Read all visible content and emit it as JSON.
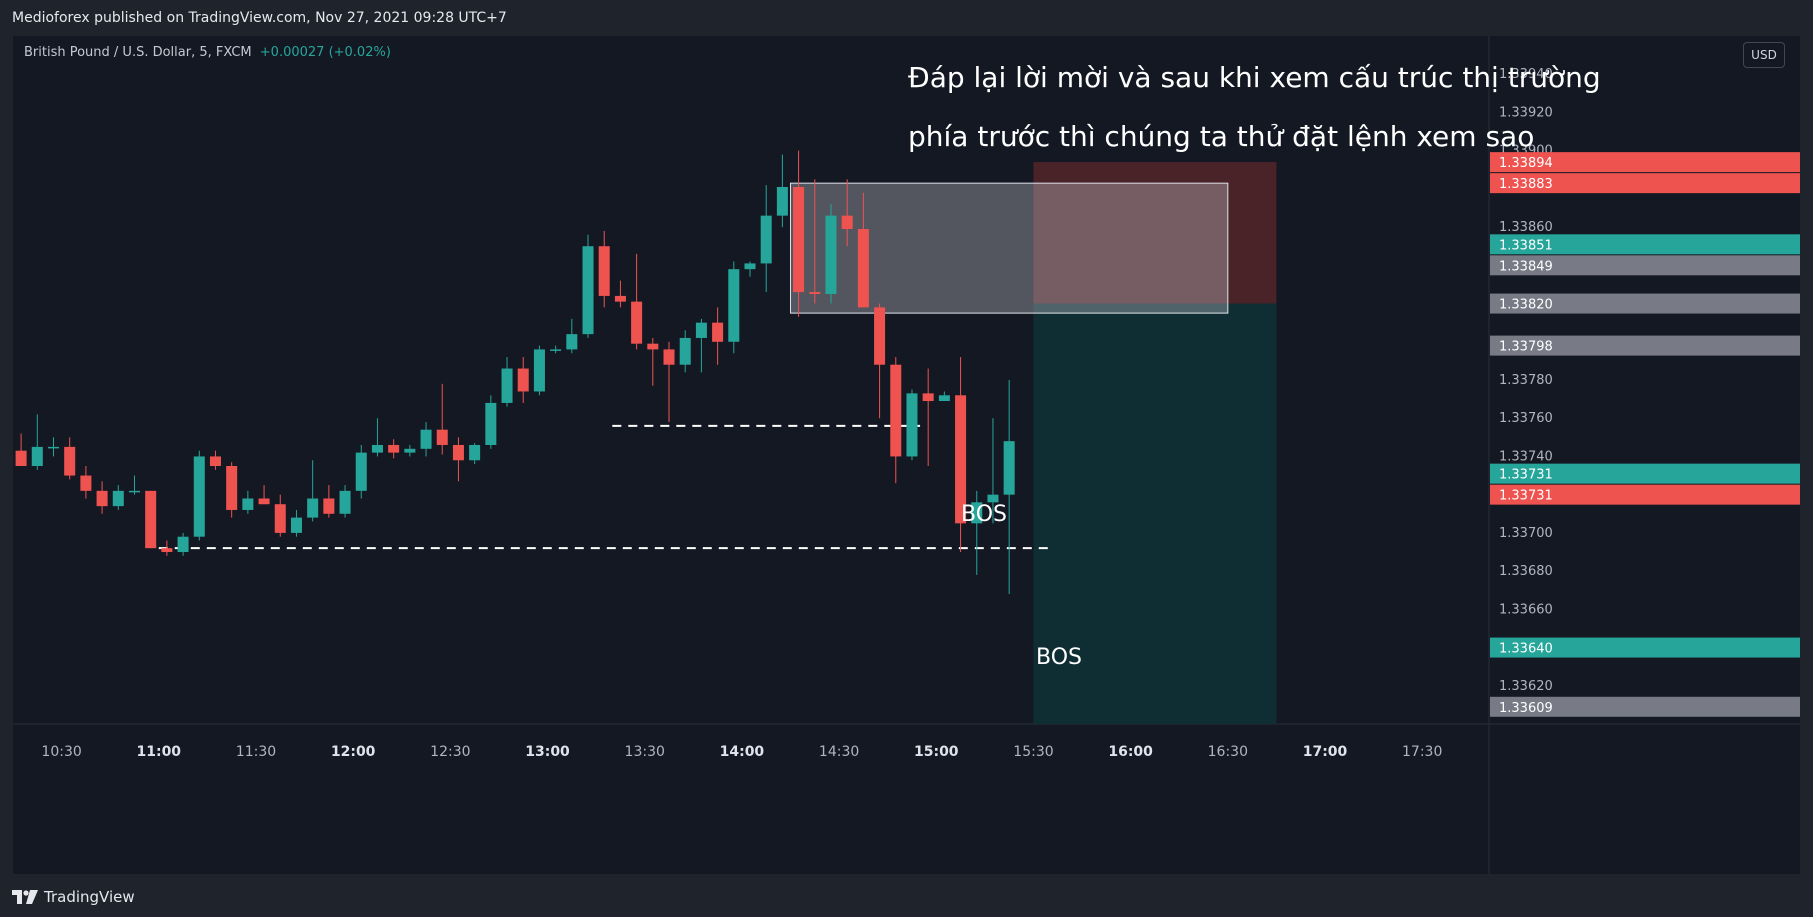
{
  "header": {
    "published": "Medioforex published on TradingView.com, Nov 27, 2021 09:28 UTC+7"
  },
  "symbol": {
    "name": "British Pound / U.S. Dollar, 5, FXCM",
    "change": "+0.00027 (+0.02%)"
  },
  "annotation": {
    "line1": "Đáp lại lời mời và sau khi xem cấu trúc thị trường",
    "line2": "phía trước thì chúng ta thử đặt lệnh xem sao"
  },
  "bos_labels": [
    "BOS",
    "BOS"
  ],
  "currency": "USD",
  "footer": {
    "brand": "TradingView"
  },
  "colors": {
    "up": "#26a69a",
    "down": "#ef5350",
    "stop_zone": "#4a2329",
    "target_zone": "#0f2e33",
    "grey_label": "#787b86"
  },
  "chart_data": {
    "type": "candlestick",
    "timeframe_minutes": 5,
    "ylim": [
      1.336,
      1.3396
    ],
    "xlim": [
      "10:15",
      "17:50"
    ],
    "x_ticks": [
      "10:30",
      "11:00",
      "11:30",
      "12:00",
      "12:30",
      "13:00",
      "13:30",
      "14:00",
      "14:30",
      "15:00",
      "15:30",
      "16:00",
      "16:30",
      "17:00",
      "17:30"
    ],
    "major_x_ticks": [
      "11:00",
      "12:00",
      "13:00",
      "14:00",
      "15:00",
      "16:00",
      "17:00"
    ],
    "y_ticks": [
      "1.33940",
      "1.33920",
      "1.33900",
      "1.33880",
      "1.33860",
      "1.33840",
      "1.33820",
      "1.33800",
      "1.33780",
      "1.33760",
      "1.33740",
      "1.33720",
      "1.33700",
      "1.33680",
      "1.33660",
      "1.33640",
      "1.33620"
    ],
    "candles": [
      {
        "t": "10:15",
        "o": 1.33743,
        "h": 1.33752,
        "l": 1.33735,
        "c": 1.33735
      },
      {
        "t": "10:20",
        "o": 1.33735,
        "h": 1.33762,
        "l": 1.33733,
        "c": 1.33745
      },
      {
        "t": "10:25",
        "o": 1.33745,
        "h": 1.3375,
        "l": 1.3374,
        "c": 1.33745
      },
      {
        "t": "10:30",
        "o": 1.33745,
        "h": 1.3375,
        "l": 1.33728,
        "c": 1.3373
      },
      {
        "t": "10:35",
        "o": 1.3373,
        "h": 1.33735,
        "l": 1.33718,
        "c": 1.33722
      },
      {
        "t": "10:40",
        "o": 1.33722,
        "h": 1.33727,
        "l": 1.3371,
        "c": 1.33714
      },
      {
        "t": "10:45",
        "o": 1.33714,
        "h": 1.33725,
        "l": 1.33712,
        "c": 1.33722
      },
      {
        "t": "10:50",
        "o": 1.33722,
        "h": 1.3373,
        "l": 1.3372,
        "c": 1.33722
      },
      {
        "t": "10:55",
        "o": 1.33722,
        "h": 1.33722,
        "l": 1.33692,
        "c": 1.33692
      },
      {
        "t": "11:00",
        "o": 1.33692,
        "h": 1.33696,
        "l": 1.33688,
        "c": 1.3369
      },
      {
        "t": "11:05",
        "o": 1.3369,
        "h": 1.337,
        "l": 1.33688,
        "c": 1.33698
      },
      {
        "t": "11:10",
        "o": 1.33698,
        "h": 1.33743,
        "l": 1.33696,
        "c": 1.3374
      },
      {
        "t": "11:15",
        "o": 1.3374,
        "h": 1.33743,
        "l": 1.33733,
        "c": 1.33735
      },
      {
        "t": "11:20",
        "o": 1.33735,
        "h": 1.33737,
        "l": 1.33708,
        "c": 1.33712
      },
      {
        "t": "11:25",
        "o": 1.33712,
        "h": 1.33722,
        "l": 1.3371,
        "c": 1.33718
      },
      {
        "t": "11:30",
        "o": 1.33718,
        "h": 1.33725,
        "l": 1.33715,
        "c": 1.33715
      },
      {
        "t": "11:35",
        "o": 1.33715,
        "h": 1.3372,
        "l": 1.33698,
        "c": 1.337
      },
      {
        "t": "11:40",
        "o": 1.337,
        "h": 1.33712,
        "l": 1.33698,
        "c": 1.33708
      },
      {
        "t": "11:45",
        "o": 1.33708,
        "h": 1.33738,
        "l": 1.33706,
        "c": 1.33718
      },
      {
        "t": "11:50",
        "o": 1.33718,
        "h": 1.33725,
        "l": 1.33708,
        "c": 1.3371
      },
      {
        "t": "11:55",
        "o": 1.3371,
        "h": 1.33725,
        "l": 1.33708,
        "c": 1.33722
      },
      {
        "t": "12:00",
        "o": 1.33722,
        "h": 1.33746,
        "l": 1.33718,
        "c": 1.33742
      },
      {
        "t": "12:05",
        "o": 1.33742,
        "h": 1.3376,
        "l": 1.3374,
        "c": 1.33746
      },
      {
        "t": "12:10",
        "o": 1.33746,
        "h": 1.33749,
        "l": 1.33739,
        "c": 1.33742
      },
      {
        "t": "12:15",
        "o": 1.33742,
        "h": 1.33746,
        "l": 1.3374,
        "c": 1.33744
      },
      {
        "t": "12:20",
        "o": 1.33744,
        "h": 1.33758,
        "l": 1.3374,
        "c": 1.33754
      },
      {
        "t": "12:25",
        "o": 1.33754,
        "h": 1.33778,
        "l": 1.33741,
        "c": 1.33746
      },
      {
        "t": "12:30",
        "o": 1.33746,
        "h": 1.3375,
        "l": 1.33727,
        "c": 1.33738
      },
      {
        "t": "12:35",
        "o": 1.33738,
        "h": 1.33747,
        "l": 1.33736,
        "c": 1.33746
      },
      {
        "t": "12:40",
        "o": 1.33746,
        "h": 1.33772,
        "l": 1.33744,
        "c": 1.33768
      },
      {
        "t": "12:45",
        "o": 1.33768,
        "h": 1.33792,
        "l": 1.33766,
        "c": 1.33786
      },
      {
        "t": "12:50",
        "o": 1.33786,
        "h": 1.33792,
        "l": 1.33768,
        "c": 1.33774
      },
      {
        "t": "12:55",
        "o": 1.33774,
        "h": 1.33798,
        "l": 1.33772,
        "c": 1.33796
      },
      {
        "t": "13:00",
        "o": 1.33796,
        "h": 1.33798,
        "l": 1.33794,
        "c": 1.33796
      },
      {
        "t": "13:05",
        "o": 1.33796,
        "h": 1.33812,
        "l": 1.33794,
        "c": 1.33804
      },
      {
        "t": "13:10",
        "o": 1.33804,
        "h": 1.33856,
        "l": 1.33802,
        "c": 1.3385
      },
      {
        "t": "13:15",
        "o": 1.3385,
        "h": 1.33858,
        "l": 1.33818,
        "c": 1.33824
      },
      {
        "t": "13:20",
        "o": 1.33824,
        "h": 1.33832,
        "l": 1.33818,
        "c": 1.33821
      },
      {
        "t": "13:25",
        "o": 1.33821,
        "h": 1.33846,
        "l": 1.33796,
        "c": 1.33799
      },
      {
        "t": "13:30",
        "o": 1.33799,
        "h": 1.33802,
        "l": 1.33777,
        "c": 1.33796
      },
      {
        "t": "13:35",
        "o": 1.33796,
        "h": 1.338,
        "l": 1.33758,
        "c": 1.33788
      },
      {
        "t": "13:40",
        "o": 1.33788,
        "h": 1.33806,
        "l": 1.33784,
        "c": 1.33802
      },
      {
        "t": "13:45",
        "o": 1.33802,
        "h": 1.33812,
        "l": 1.33784,
        "c": 1.3381
      },
      {
        "t": "13:50",
        "o": 1.3381,
        "h": 1.33818,
        "l": 1.33788,
        "c": 1.338
      },
      {
        "t": "13:55",
        "o": 1.338,
        "h": 1.33842,
        "l": 1.33794,
        "c": 1.33838
      },
      {
        "t": "14:00",
        "o": 1.33838,
        "h": 1.33842,
        "l": 1.33834,
        "c": 1.33841
      },
      {
        "t": "14:05",
        "o": 1.33841,
        "h": 1.33882,
        "l": 1.33826,
        "c": 1.33866
      },
      {
        "t": "14:10",
        "o": 1.33866,
        "h": 1.33898,
        "l": 1.3386,
        "c": 1.33881
      },
      {
        "t": "14:15",
        "o": 1.33881,
        "h": 1.339,
        "l": 1.33813,
        "c": 1.33826
      },
      {
        "t": "14:20",
        "o": 1.33826,
        "h": 1.33885,
        "l": 1.3382,
        "c": 1.33825
      },
      {
        "t": "14:25",
        "o": 1.33825,
        "h": 1.33872,
        "l": 1.3382,
        "c": 1.33866
      },
      {
        "t": "14:30",
        "o": 1.33866,
        "h": 1.33885,
        "l": 1.3385,
        "c": 1.33859
      },
      {
        "t": "14:35",
        "o": 1.33859,
        "h": 1.33878,
        "l": 1.33818,
        "c": 1.33818
      },
      {
        "t": "14:40",
        "o": 1.33818,
        "h": 1.3382,
        "l": 1.3376,
        "c": 1.33788
      },
      {
        "t": "14:45",
        "o": 1.33788,
        "h": 1.33792,
        "l": 1.33726,
        "c": 1.3374
      },
      {
        "t": "14:50",
        "o": 1.3374,
        "h": 1.33775,
        "l": 1.33738,
        "c": 1.33773
      },
      {
        "t": "14:55",
        "o": 1.33773,
        "h": 1.33786,
        "l": 1.33735,
        "c": 1.33769
      },
      {
        "t": "15:00",
        "o": 1.33769,
        "h": 1.33774,
        "l": 1.3377,
        "c": 1.33772
      },
      {
        "t": "15:05",
        "o": 1.33772,
        "h": 1.33792,
        "l": 1.3369,
        "c": 1.33705
      },
      {
        "t": "15:10",
        "o": 1.33705,
        "h": 1.33722,
        "l": 1.33678,
        "c": 1.33716
      },
      {
        "t": "15:15",
        "o": 1.33716,
        "h": 1.3376,
        "l": 1.33705,
        "c": 1.3372
      },
      {
        "t": "15:20",
        "o": 1.3372,
        "h": 1.3378,
        "l": 1.33668,
        "c": 1.33748
      }
    ],
    "bos_lines": [
      {
        "price": 1.33756,
        "from": "13:20",
        "to": "14:55"
      },
      {
        "price": 1.33692,
        "from": "11:00",
        "to": "15:35"
      }
    ],
    "order_block": {
      "top": 1.33883,
      "bottom": 1.33815,
      "from": "14:15",
      "to": "16:30"
    },
    "position": {
      "type": "short",
      "entry": 1.3382,
      "stop": 1.33894,
      "target": 1.33609,
      "from": "15:30",
      "to": "16:45"
    },
    "price_labels": [
      {
        "text": "1.33894",
        "value": 1.33894,
        "kind": "down"
      },
      {
        "text": "1.33883",
        "value": 1.33883,
        "kind": "down"
      },
      {
        "text": "1.33851",
        "value": 1.33851,
        "kind": "up"
      },
      {
        "text": "1.33849",
        "value": 1.33849,
        "kind": "grey"
      },
      {
        "text": "1.33820",
        "value": 1.3382,
        "kind": "grey"
      },
      {
        "text": "1.33798",
        "value": 1.33798,
        "kind": "grey"
      },
      {
        "text": "1.33731",
        "value": 1.33731,
        "kind": "up"
      },
      {
        "text": "1.33731",
        "value": 1.33731,
        "kind": "down"
      },
      {
        "text": "1.33640",
        "value": 1.3364,
        "kind": "up"
      },
      {
        "text": "1.33609",
        "value": 1.33609,
        "kind": "grey"
      }
    ]
  }
}
